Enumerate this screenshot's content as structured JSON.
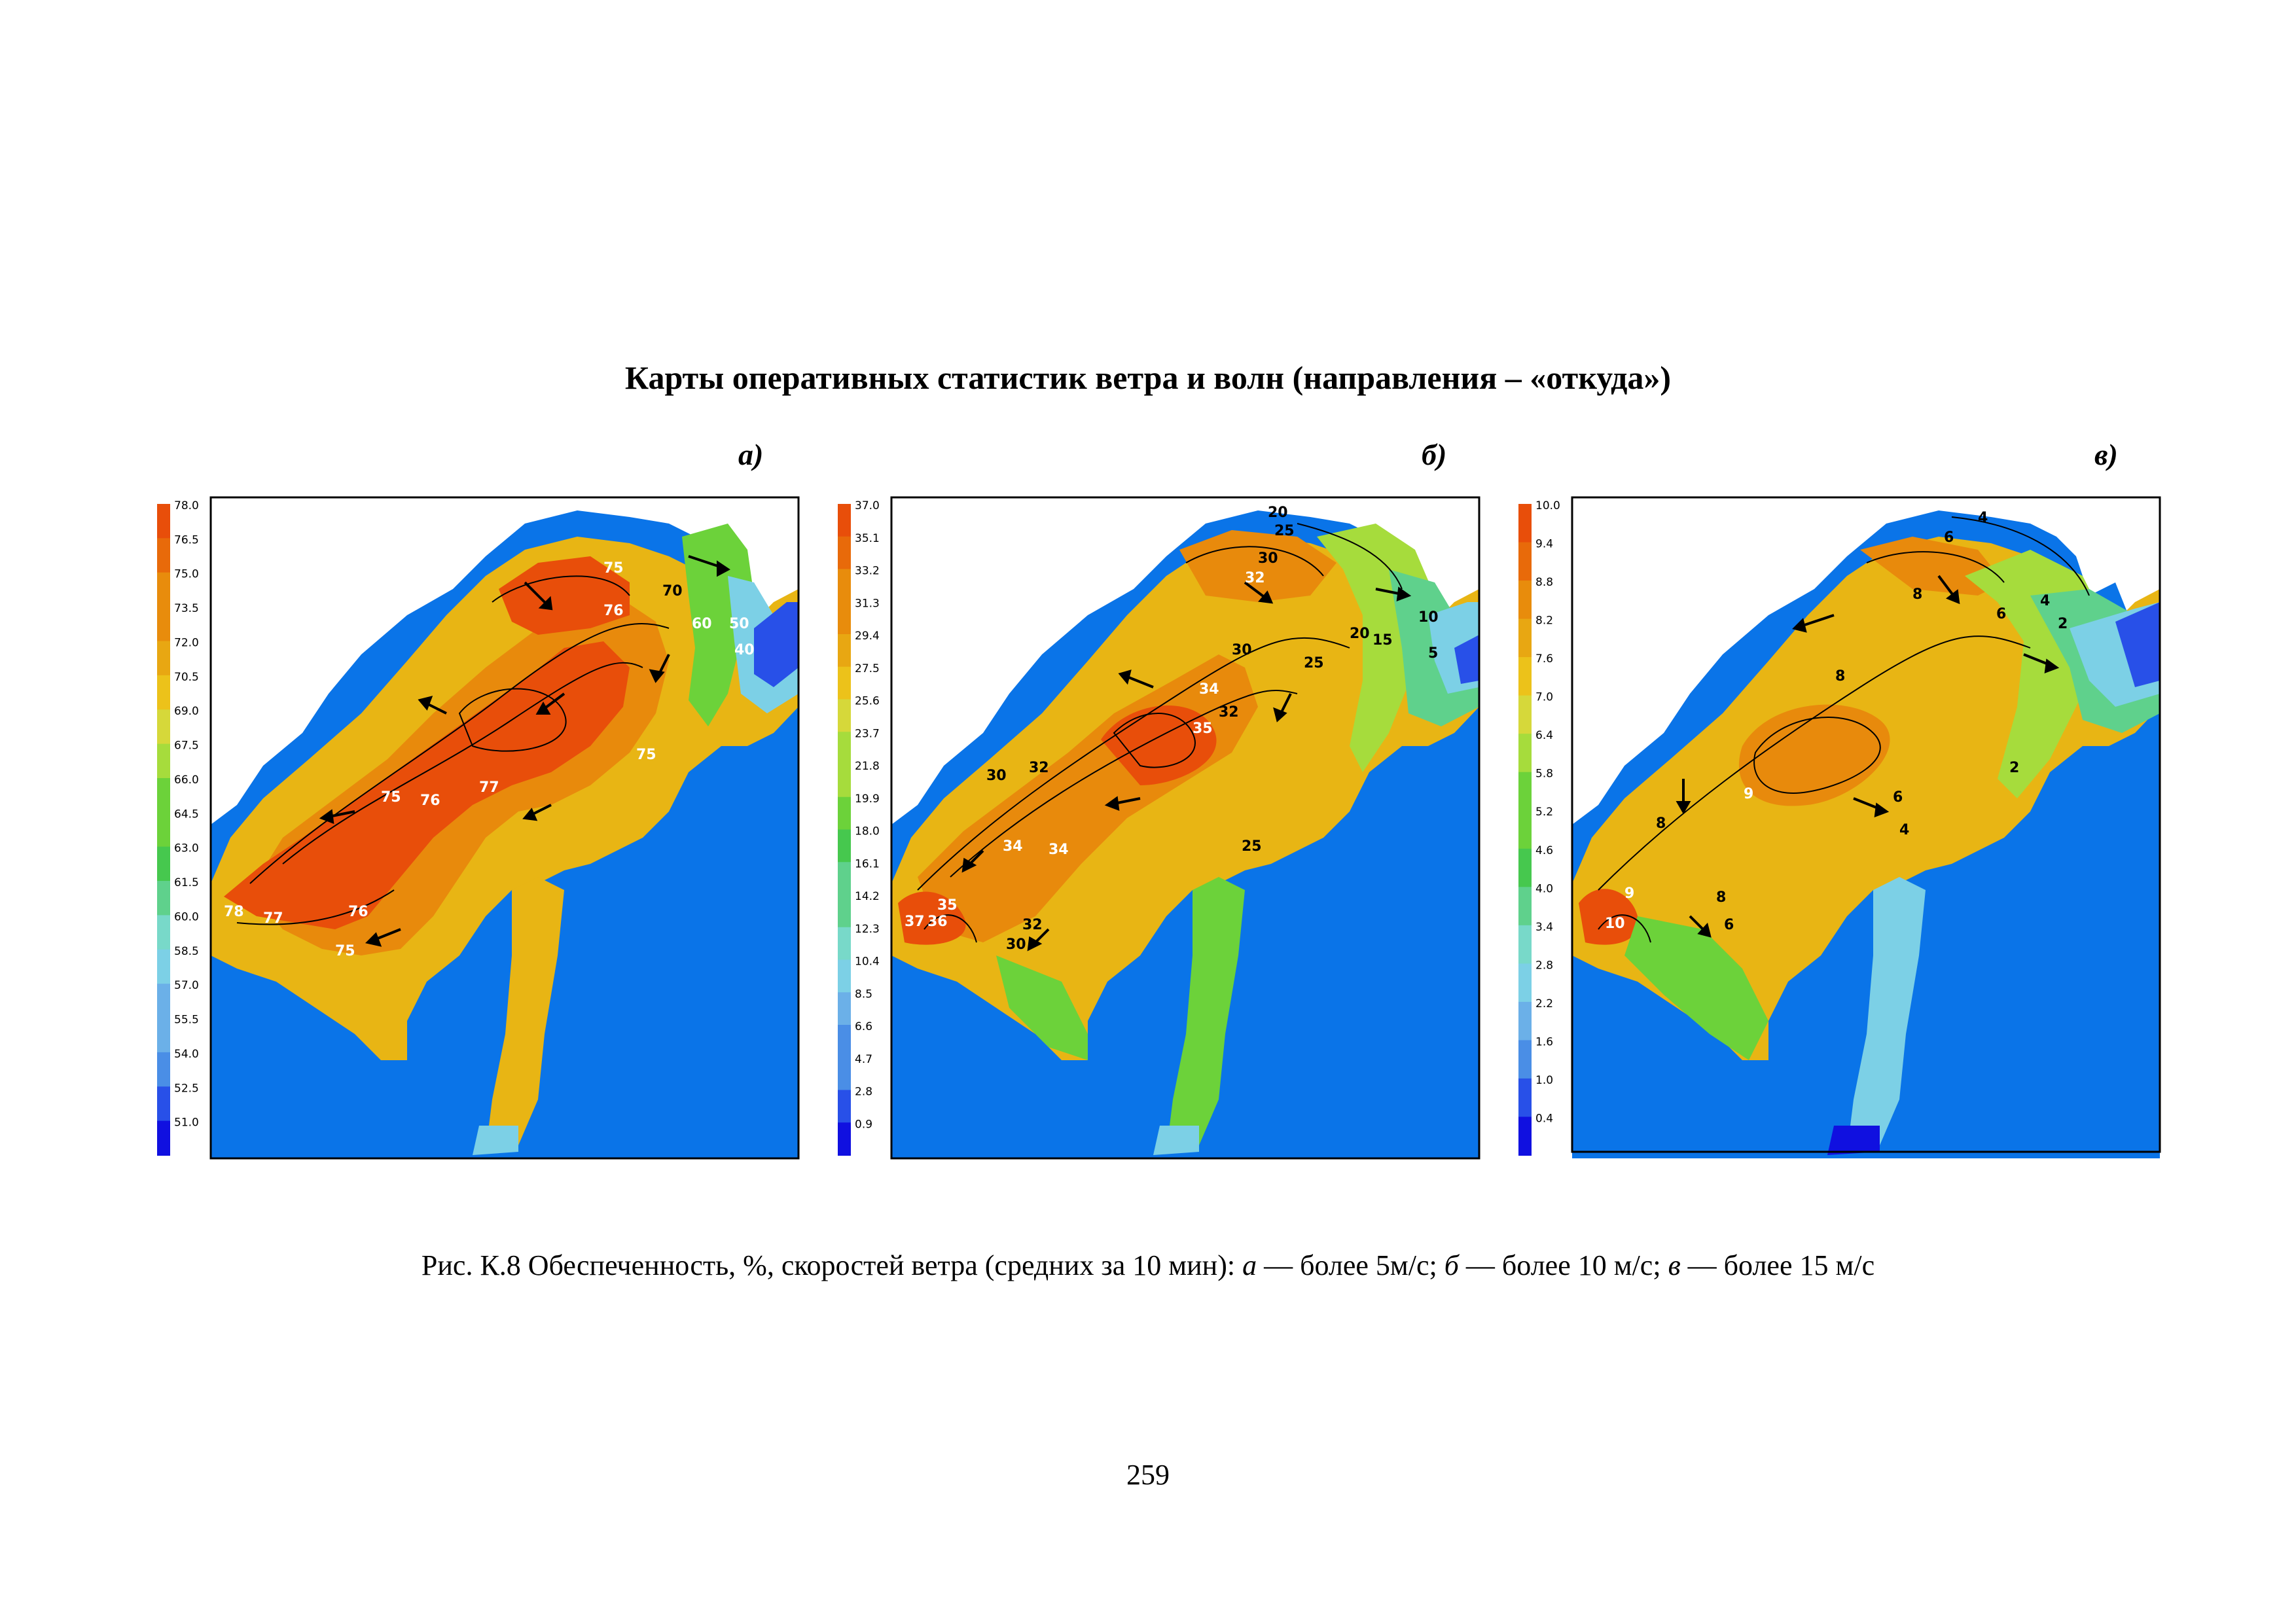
{
  "page": {
    "title": "Карты оперативных статистик ветра и волн (направления – «откуда»)",
    "caption": {
      "prefix": "Рис. К.8 Обеспеченность, %, скоростей ветра (средних за 10 мин): ",
      "a_letter": "а",
      "a_text": " — более 5м/с; ",
      "b_letter": "б",
      "b_text": " — более 10 м/с; ",
      "v_letter": "в",
      "v_text": " — более 15 м/с"
    },
    "page_number": "259"
  },
  "colors": {
    "sea": "#0a74e8",
    "land": "#ffffff",
    "scale": [
      "#1010e0",
      "#2850e8",
      "#4a8ee6",
      "#6bb0e8",
      "#7cd0e6",
      "#78d9c9",
      "#5fd18c",
      "#46c84e",
      "#6cd23a",
      "#a6dc3c",
      "#d6d83a",
      "#ecc21a",
      "#e8a712",
      "#e88c0c",
      "#e86a0a",
      "#e84e0a"
    ]
  },
  "panels": [
    {
      "letter": "а)",
      "legend_ticks": [
        "78.0",
        "76.5",
        "75.0",
        "73.5",
        "72.0",
        "70.5",
        "69.0",
        "67.5",
        "66.0",
        "64.5",
        "63.0",
        "61.5",
        "60.0",
        "58.5",
        "57.0",
        "55.5",
        "54.0",
        "52.5",
        "51.0"
      ],
      "zones": [
        "#e8b514",
        "#e88a0c",
        "#e84e0a",
        "#6cd23a",
        "#5fd18c",
        "#7cd0e6",
        "#2850e8"
      ],
      "contour_labels": [
        "75",
        "76",
        "70",
        "60",
        "50",
        "40",
        "75",
        "76",
        "77",
        "75",
        "78",
        "77",
        "76",
        "75"
      ]
    },
    {
      "letter": "б)",
      "legend_ticks": [
        "37.0",
        "35.1",
        "33.2",
        "31.3",
        "29.4",
        "27.5",
        "25.6",
        "23.7",
        "21.8",
        "19.9",
        "18.0",
        "16.1",
        "14.2",
        "12.3",
        "10.4",
        "8.5",
        "6.6",
        "4.7",
        "2.8",
        "0.9"
      ],
      "zones": [
        "#e8b514",
        "#e88a0c",
        "#e84e0a",
        "#a6dc3c",
        "#5fd18c",
        "#7cd0e6",
        "#2850e8"
      ],
      "contour_labels": [
        "20",
        "25",
        "30",
        "32",
        "30",
        "25",
        "20",
        "15",
        "10",
        "5",
        "34",
        "35",
        "32",
        "30",
        "32",
        "34",
        "34",
        "25",
        "35",
        "36",
        "37",
        "32",
        "30"
      ]
    },
    {
      "letter": "в)",
      "legend_ticks": [
        "10.0",
        "9.4",
        "8.8",
        "8.2",
        "7.6",
        "7.0",
        "6.4",
        "5.8",
        "5.2",
        "4.6",
        "4.0",
        "3.4",
        "2.8",
        "2.2",
        "1.6",
        "1.0",
        "0.4"
      ],
      "zones": [
        "#e8b514",
        "#e88a0c",
        "#e84e0a",
        "#a6dc3c",
        "#5fd18c",
        "#7cd0e6",
        "#2850e8"
      ],
      "contour_labels": [
        "4",
        "6",
        "8",
        "6",
        "4",
        "2",
        "8",
        "9",
        "6",
        "4",
        "2",
        "8",
        "9",
        "10",
        "8",
        "6"
      ]
    }
  ]
}
